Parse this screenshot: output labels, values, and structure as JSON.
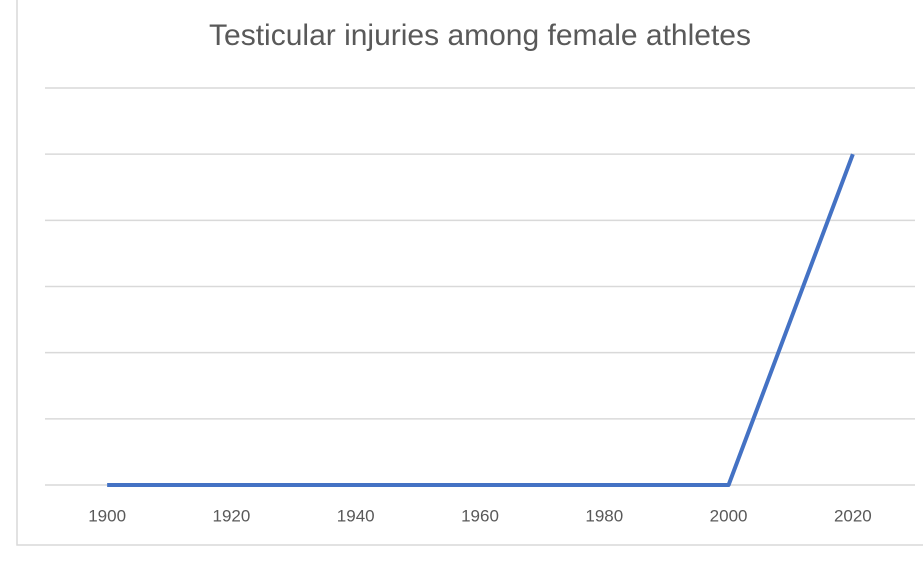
{
  "chart_data": {
    "type": "line",
    "title": "Testicular injuries among female athletes",
    "categories": [
      "1900",
      "1920",
      "1940",
      "1960",
      "1980",
      "2000",
      "2020"
    ],
    "series": [
      {
        "values": [
          0,
          0,
          0,
          0,
          0,
          0,
          5
        ],
        "color": "#4472c4"
      }
    ],
    "ylim": [
      0,
      6
    ],
    "yticks": [
      0,
      1,
      2,
      3,
      4,
      5,
      6
    ],
    "grid": true,
    "y_tick_labels": false
  }
}
